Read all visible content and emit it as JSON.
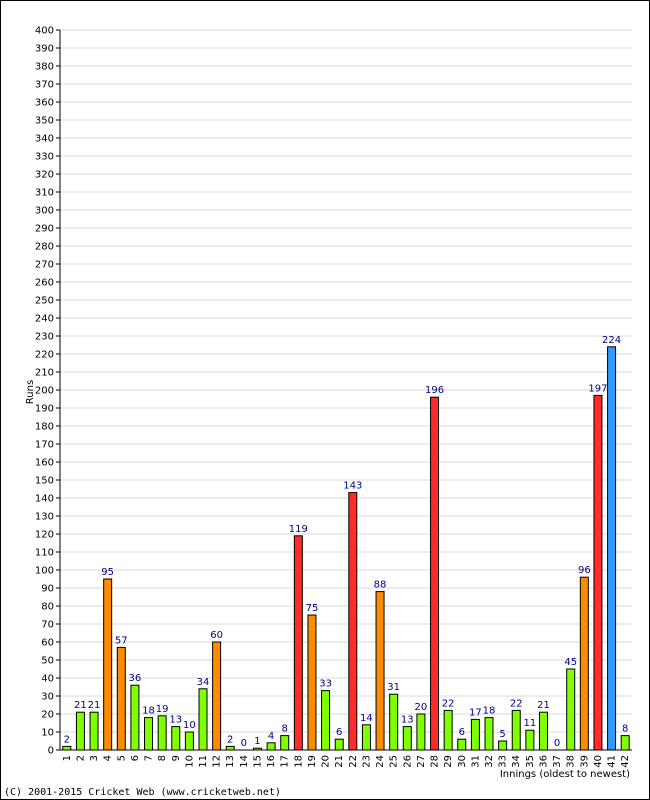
{
  "chart_data": {
    "type": "bar",
    "title": "",
    "xlabel": "Innings (oldest to newest)",
    "ylabel": "Runs",
    "ylim": [
      0,
      400
    ],
    "ytick_step": 10,
    "grid": true,
    "categories": [
      "1",
      "2",
      "3",
      "4",
      "5",
      "6",
      "7",
      "8",
      "9",
      "10",
      "11",
      "12",
      "13",
      "14",
      "15",
      "16",
      "17",
      "18",
      "19",
      "20",
      "21",
      "22",
      "23",
      "24",
      "25",
      "26",
      "27",
      "28",
      "29",
      "30",
      "31",
      "32",
      "33",
      "34",
      "35",
      "36",
      "37",
      "38",
      "39",
      "40",
      "41",
      "42"
    ],
    "values": [
      2,
      21,
      21,
      95,
      57,
      36,
      18,
      19,
      13,
      10,
      34,
      60,
      2,
      0,
      1,
      4,
      8,
      119,
      75,
      33,
      6,
      143,
      14,
      88,
      31,
      13,
      20,
      196,
      22,
      6,
      17,
      18,
      5,
      22,
      11,
      21,
      0,
      45,
      96,
      197,
      224,
      8
    ],
    "bar_colors": {
      "under_50": "#80ff00",
      "50_to_99": "#ff8c00",
      "100_plus": "#ff2a2a",
      "highlight": "#3399ff"
    },
    "highlight_index": 40
  },
  "footer": {
    "copyright": "(C) 2001-2015 Cricket Web (www.cricketweb.net)"
  }
}
